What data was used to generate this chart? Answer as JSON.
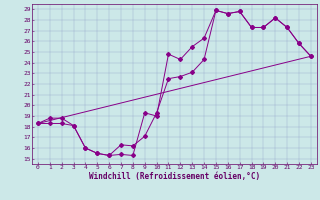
{
  "xlabel": "Windchill (Refroidissement éolien,°C)",
  "background_color": "#cce8e8",
  "line_color": "#880088",
  "xlim": [
    -0.5,
    23.5
  ],
  "ylim": [
    14.5,
    29.5
  ],
  "xticks": [
    0,
    1,
    2,
    3,
    4,
    5,
    6,
    7,
    8,
    9,
    10,
    11,
    12,
    13,
    14,
    15,
    16,
    17,
    18,
    19,
    20,
    21,
    22,
    23
  ],
  "yticks": [
    15,
    16,
    17,
    18,
    19,
    20,
    21,
    22,
    23,
    24,
    25,
    26,
    27,
    28,
    29
  ],
  "curve1_x": [
    0,
    1,
    2,
    3,
    4,
    5,
    6,
    7,
    8,
    9,
    10,
    11,
    12,
    13,
    14,
    15,
    16,
    17,
    18,
    19,
    20,
    21,
    22,
    23
  ],
  "curve1_y": [
    18.3,
    18.8,
    18.8,
    18.1,
    16.0,
    15.5,
    15.3,
    15.4,
    15.3,
    19.3,
    19.0,
    24.8,
    24.3,
    25.5,
    26.3,
    28.9,
    28.6,
    28.8,
    27.3,
    27.3,
    28.2,
    27.3,
    25.8,
    24.6
  ],
  "curve2_x": [
    0,
    1,
    2,
    3,
    4,
    5,
    6,
    7,
    8,
    9,
    10,
    11,
    12,
    13,
    14,
    15,
    16,
    17,
    18,
    19,
    20,
    21,
    22,
    23
  ],
  "curve2_y": [
    18.3,
    18.3,
    18.3,
    18.1,
    16.0,
    15.5,
    15.3,
    16.3,
    16.2,
    17.1,
    19.3,
    22.5,
    22.7,
    23.1,
    24.3,
    28.9,
    28.6,
    28.8,
    27.3,
    27.3,
    28.2,
    27.3,
    25.8,
    24.6
  ],
  "curve3_x": [
    0,
    23
  ],
  "curve3_y": [
    18.3,
    24.6
  ],
  "grid_color": "#99aacc",
  "tick_color": "#660066",
  "tick_fontsize": 4.5,
  "xlabel_fontsize": 5.5,
  "marker_size": 2.0,
  "line_width": 0.7
}
